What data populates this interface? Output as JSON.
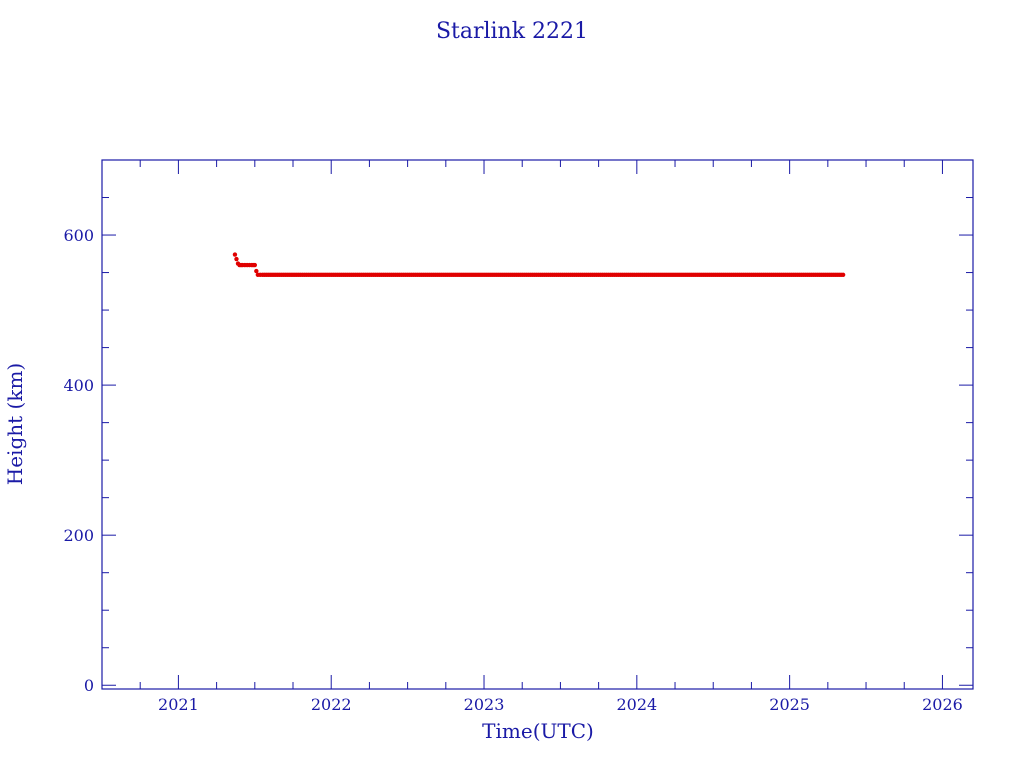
{
  "chart_data": {
    "type": "scatter",
    "title": "Starlink 2221",
    "xlabel": "Time(UTC)",
    "ylabel": "Height (km)",
    "xlim": [
      2020.5,
      2026.2
    ],
    "ylim": [
      -5,
      700
    ],
    "x_ticks": [
      2021,
      2022,
      2023,
      2024,
      2025,
      2026
    ],
    "x_tick_labels": [
      "2021",
      "2022",
      "2023",
      "2024",
      "2025",
      "2026"
    ],
    "y_ticks": [
      0,
      200,
      400,
      600
    ],
    "y_tick_labels": [
      "0",
      "200",
      "400",
      "600"
    ],
    "grid": false,
    "legend": "none",
    "marker_color": "#e00000",
    "axis_color": "#1a1aa6",
    "series": [
      {
        "x": [
          2021.37,
          2021.38,
          2021.39,
          2021.4,
          2021.42,
          2021.45,
          2021.48,
          2021.5,
          2021.51,
          2021.52,
          2021.55,
          2021.6,
          2021.7,
          2021.8,
          2022.0,
          2022.5,
          2023.0,
          2023.5,
          2024.0,
          2024.5,
          2025.0,
          2025.35
        ],
        "y": [
          574,
          568,
          562,
          560,
          560,
          560,
          560,
          560,
          552,
          547,
          547,
          547,
          547,
          547,
          547,
          547,
          547,
          547,
          547,
          547,
          547,
          547
        ]
      }
    ]
  }
}
